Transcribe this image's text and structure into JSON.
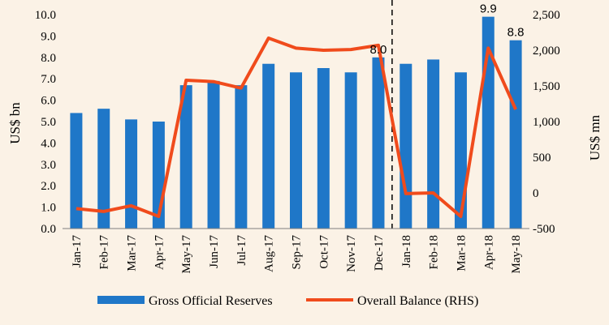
{
  "chart_data": {
    "type": "bar",
    "categories": [
      "Jan-17",
      "Feb-17",
      "Mar-17",
      "Apr-17",
      "May-17",
      "Jun-17",
      "Jul-17",
      "Aug-17",
      "Sep-17",
      "Oct-17",
      "Nov-17",
      "Dec-17",
      "Jan-18",
      "Feb-18",
      "Mar-18",
      "Apr-18",
      "May-18"
    ],
    "series": [
      {
        "name": "Gross Official Reserves",
        "type": "bar",
        "axis": "left",
        "color": "#1f77c8",
        "values": [
          5.4,
          5.6,
          5.1,
          5.0,
          6.7,
          6.9,
          6.7,
          7.7,
          7.3,
          7.5,
          7.3,
          8.0,
          7.7,
          7.9,
          7.3,
          9.9,
          8.8
        ]
      },
      {
        "name": "Overall Balance (RHS)",
        "type": "line",
        "axis": "right",
        "color": "#f04b1c",
        "values": [
          -220,
          -260,
          -180,
          -330,
          1580,
          1560,
          1470,
          2170,
          2030,
          2000,
          2010,
          2070,
          -10,
          0,
          -330,
          2030,
          1170
        ]
      }
    ],
    "ylabel": "US$ bn",
    "y2label": "US$ mn",
    "ylim": [
      0,
      10
    ],
    "y_ticks": [
      "0.0",
      "1.0",
      "2.0",
      "3.0",
      "4.0",
      "5.0",
      "6.0",
      "7.0",
      "8.0",
      "9.0",
      "10.0"
    ],
    "y2lim": [
      -500,
      2500
    ],
    "y2_ticks": [
      "-500",
      "0",
      "500",
      "1,000",
      "1,500",
      "2,000",
      "2,500"
    ],
    "data_labels": [
      {
        "category": "Dec-17",
        "text": "8.0"
      },
      {
        "category": "Apr-18",
        "text": "9.9"
      },
      {
        "category": "May-18",
        "text": "8.8"
      }
    ],
    "divider_after": "Dec-17",
    "legend": [
      "Gross Official Reserves",
      "Overall Balance (RHS)"
    ]
  }
}
